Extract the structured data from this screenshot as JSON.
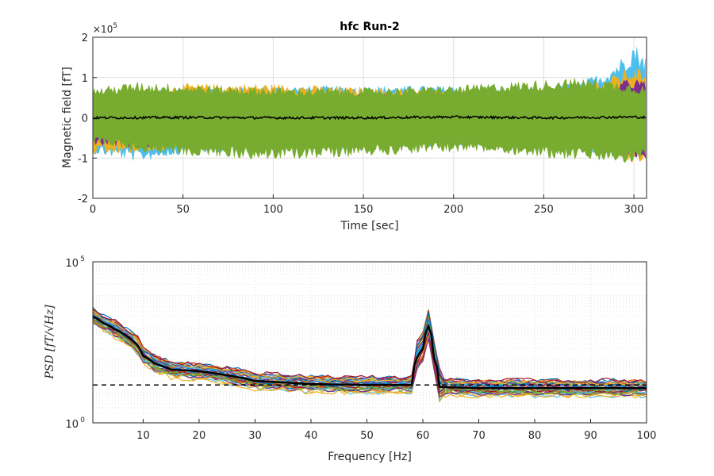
{
  "chart_data": [
    {
      "type": "line",
      "title": "hfc Run-2",
      "xlabel": "Time [sec]",
      "ylabel": "Magnetic field [fT]",
      "y_exponent_label": "×10",
      "y_exponent_power": "5",
      "xlim": [
        0,
        307
      ],
      "ylim": [
        -2,
        2
      ],
      "xticks": [
        "0",
        "50",
        "100",
        "150",
        "200",
        "250",
        "300"
      ],
      "xtick_values": [
        0,
        50,
        100,
        150,
        200,
        250,
        300
      ],
      "yticks": [
        "-2",
        "-1",
        "0",
        "1",
        "2"
      ],
      "ytick_values": [
        -2,
        -1,
        0,
        1,
        2
      ],
      "grid": true,
      "series": [
        {
          "color": "#4DBEEE",
          "envelope_x": [
            0,
            25,
            50,
            100,
            150,
            200,
            230,
            250,
            270,
            285,
            295,
            300,
            307
          ],
          "upper": [
            0.55,
            0.65,
            0.75,
            0.8,
            0.8,
            0.8,
            0.7,
            0.75,
            0.9,
            1.2,
            1.6,
            1.9,
            1.5
          ],
          "lower": [
            -0.9,
            -1.1,
            -0.9,
            -0.8,
            -0.8,
            -0.7,
            -0.7,
            -0.75,
            -0.85,
            -0.95,
            -1.0,
            -1.05,
            -1.0
          ]
        },
        {
          "color": "#EDB120",
          "envelope_x": [
            0,
            25,
            50,
            100,
            150,
            200,
            230,
            250,
            270,
            285,
            295,
            300,
            307
          ],
          "upper": [
            0.55,
            0.6,
            0.85,
            0.85,
            0.75,
            0.7,
            0.65,
            0.7,
            0.85,
            1.0,
            1.2,
            1.25,
            1.2
          ],
          "lower": [
            -0.95,
            -0.9,
            -0.8,
            -0.75,
            -0.75,
            -0.7,
            -0.65,
            -0.7,
            -0.8,
            -0.9,
            -1.1,
            -1.15,
            -1.1
          ]
        },
        {
          "color": "#7E2F8E",
          "envelope_x": [
            0,
            25,
            50,
            100,
            150,
            200,
            230,
            250,
            270,
            285,
            295,
            300,
            307
          ],
          "upper": [
            0.5,
            0.55,
            0.6,
            0.6,
            0.6,
            0.55,
            0.55,
            0.6,
            0.65,
            0.8,
            0.95,
            1.0,
            0.9
          ],
          "lower": [
            -0.7,
            -0.75,
            -0.65,
            -0.6,
            -0.6,
            -0.55,
            -0.55,
            -0.6,
            -0.7,
            -0.8,
            -1.0,
            -1.05,
            -1.0
          ]
        },
        {
          "color": "#A2142F",
          "envelope_x": [
            0,
            25,
            50,
            100,
            150,
            200,
            230,
            250,
            270,
            285,
            295,
            300,
            307
          ],
          "upper": [
            0.3,
            0.45,
            0.5,
            0.5,
            0.4,
            0.3,
            0.25,
            0.3,
            0.45,
            0.55,
            0.6,
            0.55,
            0.5
          ],
          "lower": [
            -0.55,
            -0.55,
            -0.5,
            -0.5,
            -0.45,
            -0.45,
            -0.55,
            -0.65,
            -0.75,
            -0.8,
            -0.85,
            -0.8,
            -0.75
          ]
        },
        {
          "color": "#77AC30",
          "envelope_x": [
            0,
            25,
            50,
            100,
            150,
            200,
            230,
            250,
            270,
            285,
            295,
            300,
            307
          ],
          "upper": [
            0.75,
            0.9,
            0.85,
            0.75,
            0.75,
            0.8,
            0.9,
            0.95,
            1.0,
            0.95,
            0.9,
            0.85,
            0.8
          ],
          "lower": [
            -0.6,
            -0.85,
            -0.95,
            -1.05,
            -0.95,
            -0.85,
            -0.9,
            -1.0,
            -1.05,
            -1.1,
            -1.15,
            -1.1,
            -1.05
          ]
        },
        {
          "color": "#000000",
          "line": true,
          "x": [
            0,
            50,
            100,
            150,
            200,
            250,
            300,
            307
          ],
          "y": [
            0.0,
            0.01,
            0.0,
            0.0,
            0.02,
            0.0,
            0.02,
            0.01
          ]
        }
      ]
    },
    {
      "type": "line",
      "xlabel": "Frequency [Hz]",
      "ylabel": "PSD [fT/√Hz]",
      "xlim": [
        1,
        100
      ],
      "ylim": [
        1,
        100000
      ],
      "yscale": "log",
      "xticks": [
        "10",
        "20",
        "30",
        "40",
        "50",
        "60",
        "70",
        "80",
        "90",
        "100"
      ],
      "xtick_values": [
        10,
        20,
        30,
        40,
        50,
        60,
        70,
        80,
        90,
        100
      ],
      "yticks": [
        "10",
        "10"
      ],
      "ytick_values": [
        1,
        100000
      ],
      "ytick_powers": [
        "0",
        "5"
      ],
      "grid": true,
      "reference_line": {
        "y": 15,
        "style": "dashed",
        "color": "#000000"
      },
      "mean_series": {
        "color": "#000000",
        "x": [
          1,
          3,
          5,
          7,
          9,
          10,
          12,
          15,
          20,
          25,
          30,
          40,
          50,
          58,
          60,
          61,
          62,
          63,
          70,
          80,
          90,
          100
        ],
        "y": [
          2000,
          1200,
          800,
          500,
          250,
          120,
          70,
          45,
          40,
          30,
          20,
          16,
          15,
          15,
          200,
          1000,
          100,
          13,
          12,
          12,
          12,
          12
        ]
      },
      "series_count": 36
    }
  ]
}
